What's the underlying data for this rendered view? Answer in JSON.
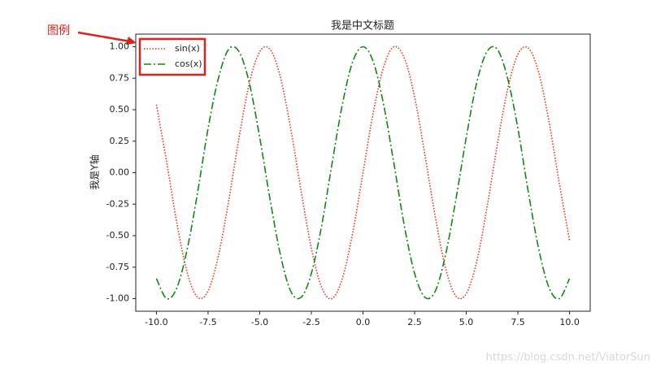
{
  "chart_data": {
    "type": "line",
    "title": "我是中文标题",
    "y_label": "我是Y轴",
    "annotation": "图例",
    "watermark": "https://blog.csdn.net/ViatorSun",
    "x": [
      -10,
      -9.5,
      -9,
      -8.5,
      -8,
      -7.5,
      -7,
      -6.5,
      -6,
      -5.5,
      -5,
      -4.5,
      -4,
      -3.5,
      -3,
      -2.5,
      -2,
      -1.5,
      -1,
      -0.5,
      0,
      0.5,
      1,
      1.5,
      2,
      2.5,
      3,
      3.5,
      4,
      4.5,
      5,
      5.5,
      6,
      6.5,
      7,
      7.5,
      8,
      8.5,
      9,
      9.5,
      10
    ],
    "series": [
      {
        "name": "sin(x)",
        "color": "#ff2a1a",
        "linestyle": "dotted",
        "values": [
          0.54,
          0.08,
          -0.41,
          -0.8,
          -0.99,
          -0.94,
          -0.66,
          -0.22,
          0.28,
          0.71,
          0.96,
          0.98,
          0.76,
          0.35,
          -0.14,
          -0.6,
          -0.91,
          -1.0,
          -0.84,
          -0.48,
          0,
          0.48,
          0.84,
          1.0,
          0.91,
          0.6,
          0.14,
          -0.35,
          -0.76,
          -0.98,
          -0.96,
          -0.71,
          -0.28,
          0.22,
          0.66,
          0.94,
          0.99,
          0.8,
          0.41,
          -0.08,
          -0.54
        ]
      },
      {
        "name": "cos(x)",
        "color": "#118811",
        "linestyle": "dashdot",
        "values": [
          -0.84,
          -1.0,
          -0.91,
          -0.6,
          -0.15,
          0.35,
          0.75,
          0.98,
          0.96,
          0.71,
          0.28,
          -0.21,
          -0.65,
          -0.94,
          -0.99,
          -0.8,
          -0.42,
          0.07,
          0.54,
          0.88,
          1,
          0.88,
          0.54,
          0.07,
          -0.42,
          -0.8,
          -0.99,
          -0.94,
          -0.65,
          -0.21,
          0.28,
          0.71,
          0.96,
          0.98,
          0.75,
          0.35,
          -0.15,
          -0.6,
          -0.91,
          -1.0,
          -0.84
        ]
      }
    ],
    "xlim": [
      -11,
      11
    ],
    "ylim": [
      -1.1,
      1.1
    ],
    "xticks": [
      {
        "value": -10,
        "label": "-10.0"
      },
      -7.5,
      {
        "value": -5,
        "label": "-5.0"
      },
      -2.5,
      {
        "value": 0,
        "label": "0.0"
      },
      2.5,
      {
        "value": 5,
        "label": "5.0"
      },
      7.5,
      {
        "value": 10,
        "label": "10.0"
      }
    ],
    "yticks": [
      {
        "value": -1,
        "label": "-1.00"
      },
      -0.75,
      {
        "value": -0.5,
        "label": "-0.50"
      },
      -0.25,
      {
        "value": 0,
        "label": "0.00"
      },
      0.25,
      {
        "value": 0.5,
        "label": "0.50"
      },
      0.75,
      {
        "value": 1,
        "label": "1.00"
      }
    ],
    "legend": "upper left",
    "grid": false
  }
}
